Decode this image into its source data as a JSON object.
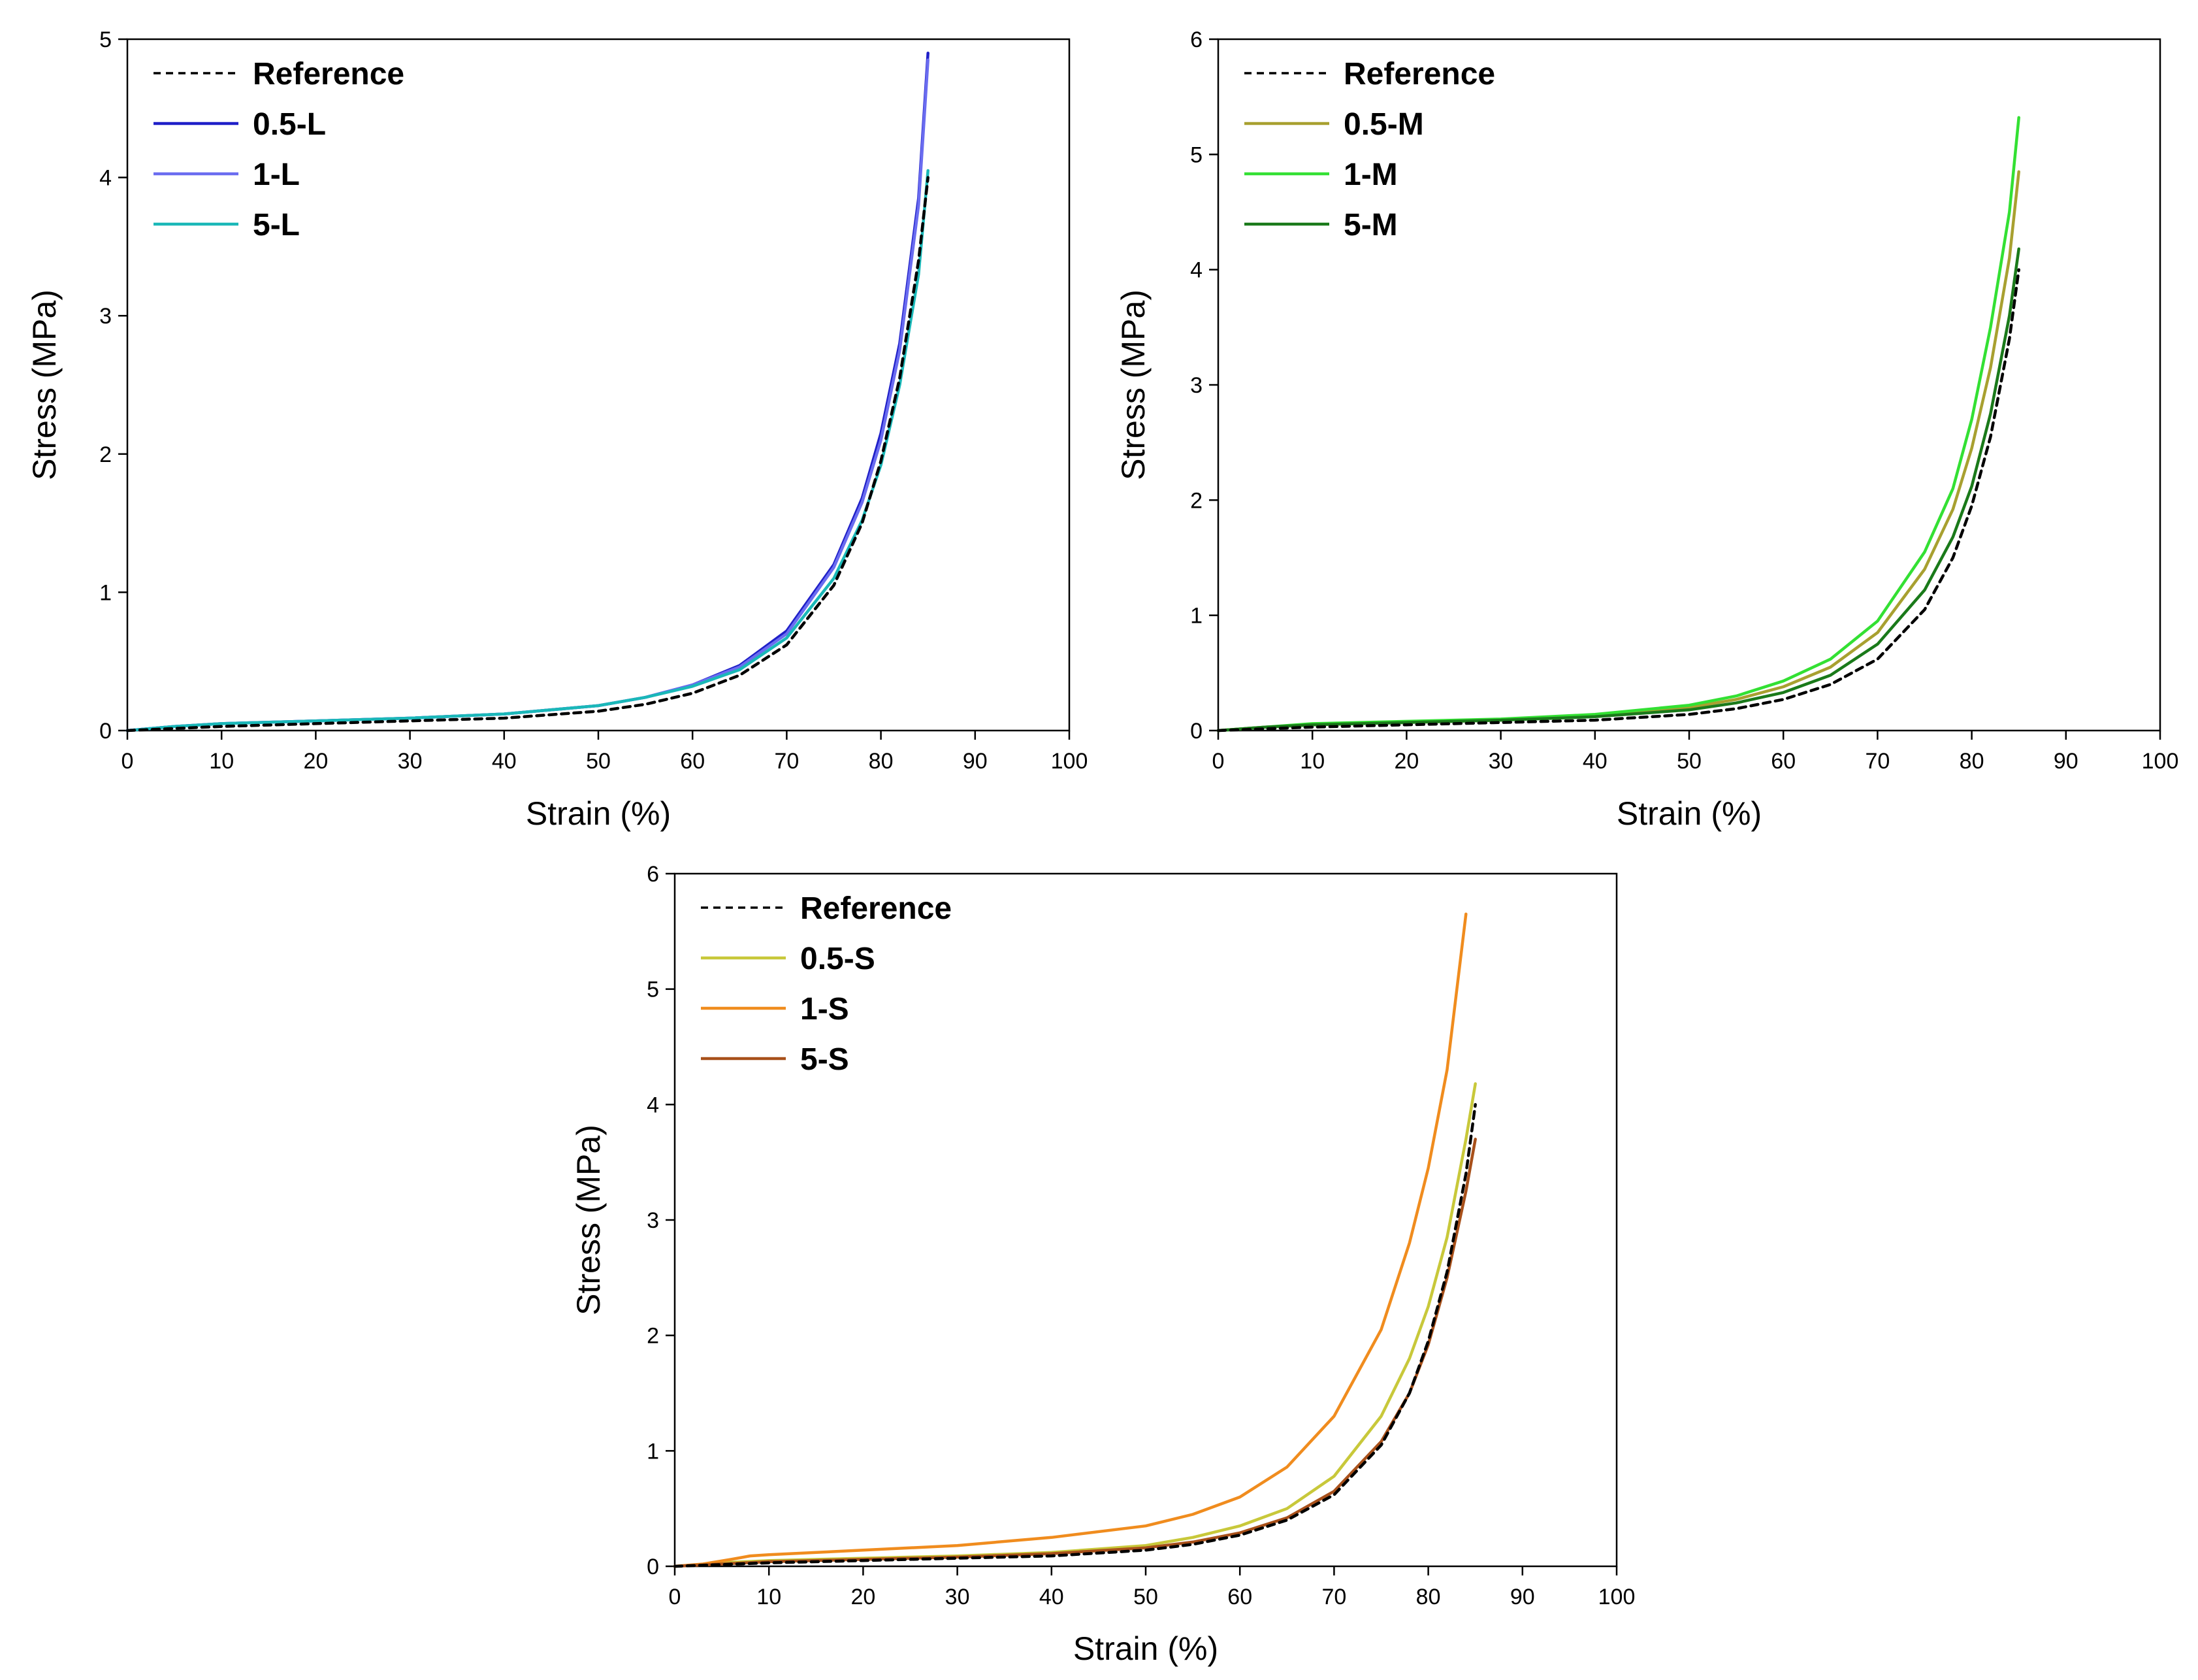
{
  "chart_data": [
    {
      "type": "line",
      "id": "L",
      "xlabel": "Strain (%)",
      "ylabel": "Stress (MPa)",
      "xlim": [
        0,
        100
      ],
      "ylim": [
        0,
        5
      ],
      "xticks": [
        0,
        10,
        20,
        30,
        40,
        50,
        60,
        70,
        80,
        90,
        100
      ],
      "yticks": [
        0,
        1,
        2,
        3,
        4,
        5
      ],
      "legend_position": "top-left",
      "series": [
        {
          "name": "Reference",
          "color": "#000000",
          "dashed": true,
          "x": [
            0,
            10,
            20,
            30,
            40,
            50,
            55,
            60,
            65,
            70,
            75,
            78,
            80,
            82,
            84,
            85
          ],
          "y": [
            0,
            0.03,
            0.05,
            0.07,
            0.09,
            0.14,
            0.19,
            0.27,
            0.4,
            0.62,
            1.05,
            1.5,
            1.95,
            2.55,
            3.4,
            4.0
          ]
        },
        {
          "name": "0.5-L",
          "color": "#1f1fc8",
          "dashed": false,
          "x": [
            0,
            5,
            10,
            20,
            30,
            40,
            50,
            55,
            60,
            65,
            70,
            75,
            78,
            80,
            82,
            84,
            85
          ],
          "y": [
            0,
            0.03,
            0.05,
            0.07,
            0.09,
            0.12,
            0.18,
            0.24,
            0.33,
            0.47,
            0.72,
            1.2,
            1.68,
            2.15,
            2.8,
            3.85,
            4.9
          ]
        },
        {
          "name": "1-L",
          "color": "#6a6cf0",
          "dashed": false,
          "x": [
            0,
            5,
            10,
            20,
            30,
            40,
            50,
            55,
            60,
            65,
            70,
            75,
            78,
            80,
            82,
            84,
            85
          ],
          "y": [
            0,
            0.03,
            0.05,
            0.07,
            0.09,
            0.12,
            0.18,
            0.24,
            0.33,
            0.46,
            0.7,
            1.18,
            1.65,
            2.1,
            2.75,
            3.8,
            4.85
          ]
        },
        {
          "name": "5-L",
          "color": "#1ab8b8",
          "dashed": false,
          "x": [
            0,
            5,
            10,
            20,
            30,
            40,
            50,
            55,
            60,
            65,
            70,
            75,
            78,
            80,
            82,
            84,
            85
          ],
          "y": [
            0,
            0.03,
            0.05,
            0.07,
            0.09,
            0.12,
            0.18,
            0.24,
            0.32,
            0.44,
            0.67,
            1.1,
            1.52,
            1.92,
            2.5,
            3.3,
            4.05
          ]
        }
      ]
    },
    {
      "type": "line",
      "id": "M",
      "xlabel": "Strain (%)",
      "ylabel": "Stress (MPa)",
      "xlim": [
        0,
        100
      ],
      "ylim": [
        0,
        6
      ],
      "xticks": [
        0,
        10,
        20,
        30,
        40,
        50,
        60,
        70,
        80,
        90,
        100
      ],
      "yticks": [
        0,
        1,
        2,
        3,
        4,
        5,
        6
      ],
      "legend_position": "top-left",
      "series": [
        {
          "name": "Reference",
          "color": "#000000",
          "dashed": true,
          "x": [
            0,
            10,
            20,
            30,
            40,
            50,
            55,
            60,
            65,
            70,
            75,
            78,
            80,
            82,
            84,
            85
          ],
          "y": [
            0,
            0.03,
            0.05,
            0.07,
            0.09,
            0.14,
            0.19,
            0.27,
            0.4,
            0.62,
            1.05,
            1.5,
            1.95,
            2.55,
            3.4,
            4.0
          ]
        },
        {
          "name": "0.5-M",
          "color": "#a8a030",
          "dashed": false,
          "x": [
            0,
            5,
            10,
            20,
            30,
            40,
            50,
            55,
            60,
            65,
            70,
            75,
            78,
            80,
            82,
            84,
            85
          ],
          "y": [
            0,
            0.03,
            0.05,
            0.07,
            0.09,
            0.13,
            0.2,
            0.27,
            0.38,
            0.55,
            0.85,
            1.4,
            1.92,
            2.45,
            3.15,
            4.1,
            4.85
          ]
        },
        {
          "name": "1-M",
          "color": "#33e033",
          "dashed": false,
          "x": [
            0,
            5,
            10,
            20,
            30,
            40,
            50,
            55,
            60,
            65,
            70,
            75,
            78,
            80,
            82,
            84,
            85
          ],
          "y": [
            0,
            0.03,
            0.06,
            0.08,
            0.1,
            0.14,
            0.22,
            0.3,
            0.43,
            0.62,
            0.95,
            1.55,
            2.1,
            2.7,
            3.5,
            4.5,
            5.32
          ]
        },
        {
          "name": "5-M",
          "color": "#1a7a1a",
          "dashed": false,
          "x": [
            0,
            5,
            10,
            20,
            30,
            40,
            50,
            55,
            60,
            65,
            70,
            75,
            78,
            80,
            82,
            84,
            85
          ],
          "y": [
            0,
            0.03,
            0.05,
            0.07,
            0.09,
            0.12,
            0.18,
            0.24,
            0.33,
            0.48,
            0.75,
            1.22,
            1.68,
            2.12,
            2.75,
            3.6,
            4.18
          ]
        }
      ]
    },
    {
      "type": "line",
      "id": "S",
      "xlabel": "Strain (%)",
      "ylabel": "Stress (MPa)",
      "xlim": [
        0,
        100
      ],
      "ylim": [
        0,
        6
      ],
      "xticks": [
        0,
        10,
        20,
        30,
        40,
        50,
        60,
        70,
        80,
        90,
        100
      ],
      "yticks": [
        0,
        1,
        2,
        3,
        4,
        5,
        6
      ],
      "legend_position": "top-left",
      "series": [
        {
          "name": "Reference",
          "color": "#000000",
          "dashed": true,
          "x": [
            0,
            10,
            20,
            30,
            40,
            50,
            55,
            60,
            65,
            70,
            75,
            78,
            80,
            82,
            84,
            85
          ],
          "y": [
            0,
            0.03,
            0.05,
            0.07,
            0.09,
            0.14,
            0.19,
            0.27,
            0.4,
            0.62,
            1.05,
            1.5,
            1.95,
            2.55,
            3.4,
            4.0
          ]
        },
        {
          "name": "0.5-S",
          "color": "#c8c83a",
          "dashed": false,
          "x": [
            0,
            5,
            10,
            20,
            30,
            40,
            50,
            55,
            60,
            65,
            70,
            75,
            78,
            80,
            82,
            84,
            85
          ],
          "y": [
            0,
            0.03,
            0.05,
            0.07,
            0.09,
            0.12,
            0.18,
            0.25,
            0.35,
            0.5,
            0.78,
            1.3,
            1.8,
            2.25,
            2.85,
            3.7,
            4.18
          ]
        },
        {
          "name": "1-S",
          "color": "#f08c1e",
          "dashed": false,
          "x": [
            0,
            3,
            6,
            8,
            10,
            20,
            30,
            40,
            50,
            55,
            60,
            65,
            70,
            75,
            78,
            80,
            82,
            84
          ],
          "y": [
            0,
            0.02,
            0.06,
            0.09,
            0.1,
            0.14,
            0.18,
            0.25,
            0.35,
            0.45,
            0.6,
            0.86,
            1.3,
            2.05,
            2.8,
            3.45,
            4.3,
            5.65
          ]
        },
        {
          "name": "5-S",
          "color": "#a8501a",
          "dashed": false,
          "x": [
            0,
            5,
            10,
            20,
            30,
            40,
            50,
            55,
            60,
            65,
            70,
            75,
            78,
            80,
            82,
            84,
            85
          ],
          "y": [
            0,
            0.02,
            0.04,
            0.06,
            0.08,
            0.11,
            0.16,
            0.21,
            0.29,
            0.42,
            0.65,
            1.08,
            1.5,
            1.92,
            2.5,
            3.25,
            3.7
          ]
        }
      ]
    }
  ]
}
